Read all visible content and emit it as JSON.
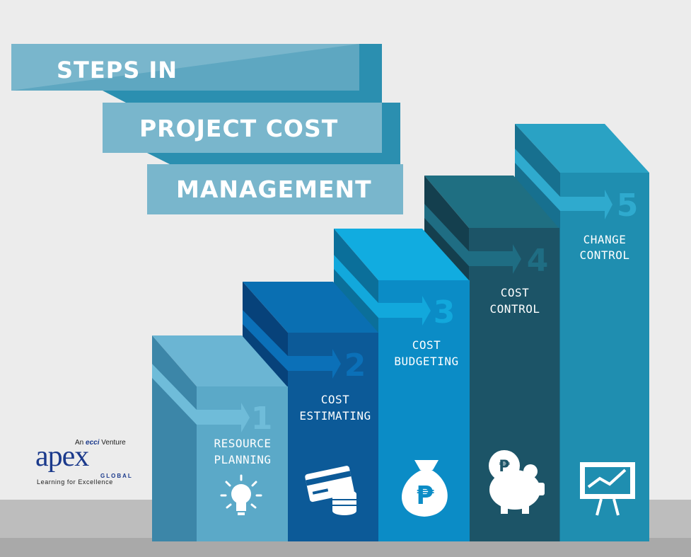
{
  "title": {
    "line1": "STEPS IN",
    "line2": "PROJECT COST",
    "line3": "MANAGEMENT"
  },
  "steps": [
    {
      "number": "1",
      "line1": "RESOURCE",
      "line2": "PLANNING",
      "icon": "lightbulb-icon"
    },
    {
      "number": "2",
      "line1": "COST",
      "line2": "ESTIMATING",
      "icon": "credit-card-coins-icon"
    },
    {
      "number": "3",
      "line1": "COST",
      "line2": "BUDGETING",
      "icon": "money-bag-peso-icon"
    },
    {
      "number": "4",
      "line1": "COST",
      "line2": "CONTROL",
      "icon": "piggy-bank-peso-icon"
    },
    {
      "number": "5",
      "line1": "CHANGE",
      "line2": "CONTROL",
      "icon": "chart-board-icon"
    }
  ],
  "logo": {
    "venture_prefix": "An",
    "venture_brand": "ecci",
    "venture_suffix": "Venture",
    "brand": "apex",
    "global": "GLOBAL",
    "tagline": "Learning for Excellence"
  },
  "colors": {
    "background": "#ececec",
    "floor": "#bdbdbd",
    "title_band": "#79b6cc",
    "title_band_fold": "#2b8fb0",
    "step1": "#5ba9c8",
    "step2": "#0c5a98",
    "step3": "#0b8cc6",
    "step4": "#1c5467",
    "step5": "#1f8eb0"
  }
}
